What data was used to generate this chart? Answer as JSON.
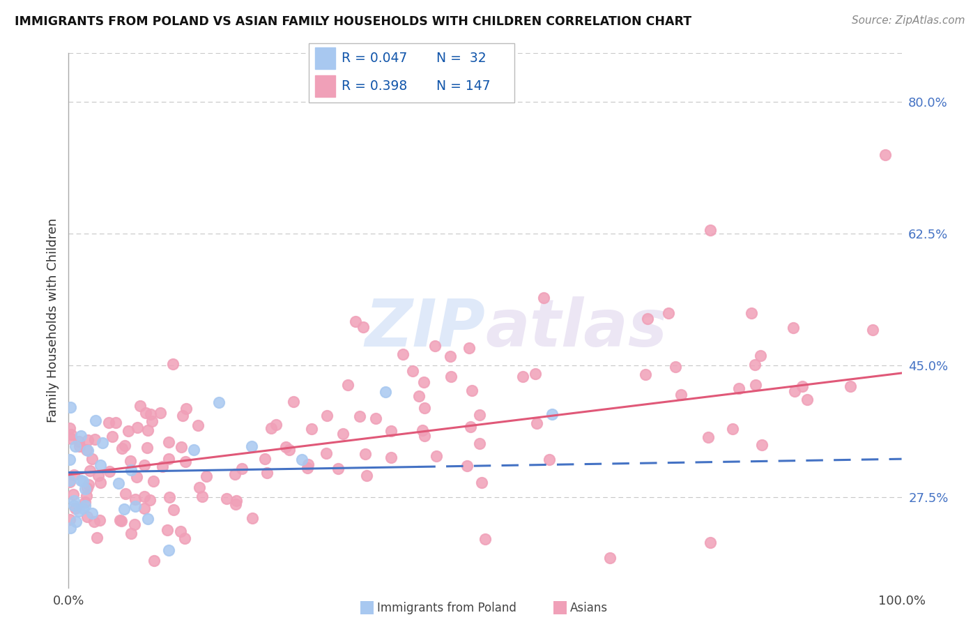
{
  "title": "IMMIGRANTS FROM POLAND VS ASIAN FAMILY HOUSEHOLDS WITH CHILDREN CORRELATION CHART",
  "source": "Source: ZipAtlas.com",
  "ylabel": "Family Households with Children",
  "ytick_labels": [
    "27.5%",
    "45.0%",
    "62.5%",
    "80.0%"
  ],
  "ytick_values": [
    0.275,
    0.45,
    0.625,
    0.8
  ],
  "xmin": 0.0,
  "xmax": 1.0,
  "ymin": 0.155,
  "ymax": 0.865,
  "legend_R1": "R = 0.047",
  "legend_N1": "N =  32",
  "legend_R2": "R = 0.398",
  "legend_N2": "N = 147",
  "series1_color": "#a8c8f0",
  "series2_color": "#f0a0b8",
  "line1_color": "#4472c4",
  "line2_color": "#e05878",
  "line1_dash": true,
  "line2_dash": false,
  "watermark_text": "ZIPatlas",
  "watermark_color": "#c8d8f0",
  "bottom_legend_labels": [
    "Immigrants from Poland",
    "Asians"
  ],
  "bottom_legend_colors": [
    "#a8c8f0",
    "#f0a0b8"
  ]
}
